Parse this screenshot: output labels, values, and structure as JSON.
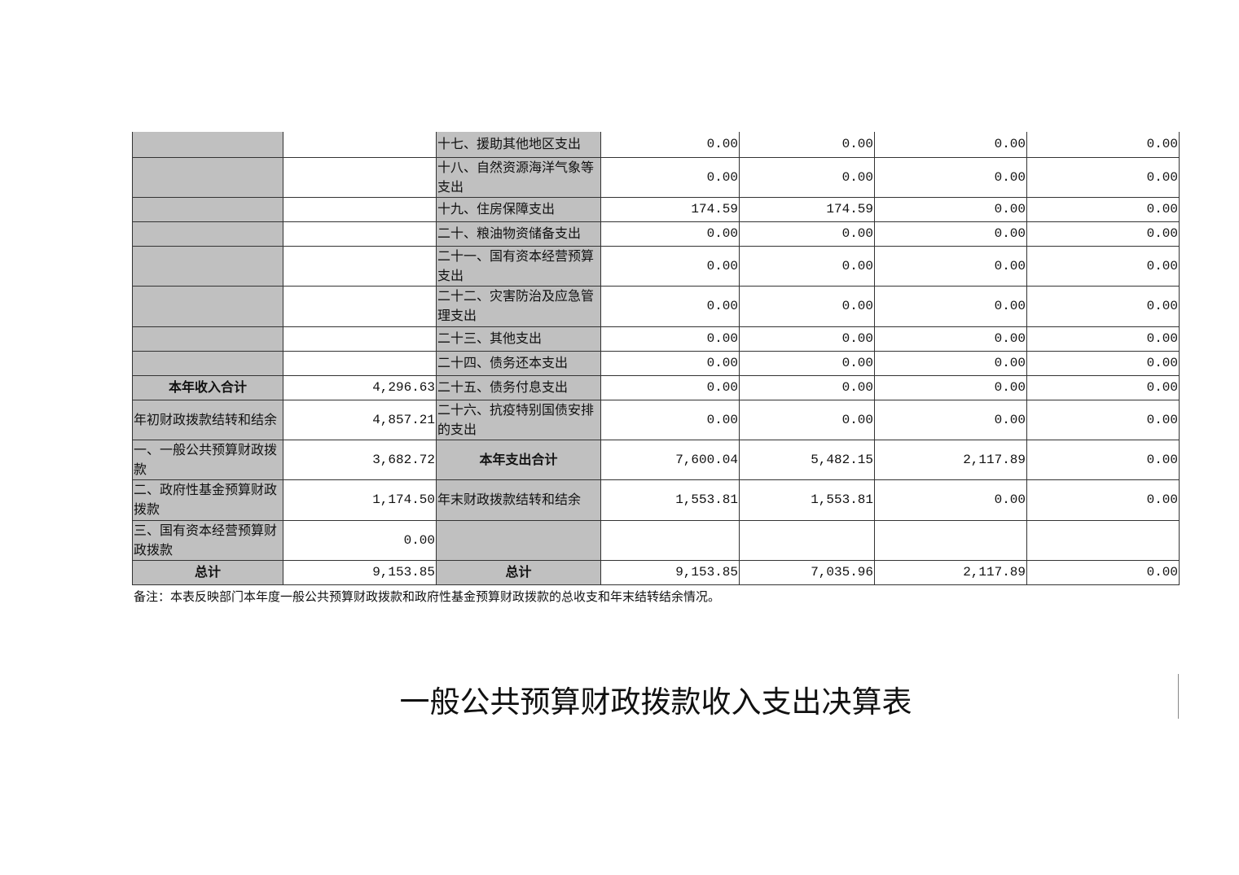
{
  "table": {
    "rows": [
      {
        "left_label": "",
        "left_value": "",
        "right_label": "十七、援助其他地区支出",
        "values": [
          "0.00",
          "0.00",
          "0.00",
          "0.00"
        ]
      },
      {
        "left_label": "",
        "left_value": "",
        "right_label": "十八、自然资源海洋气象等支出",
        "values": [
          "0.00",
          "0.00",
          "0.00",
          "0.00"
        ]
      },
      {
        "left_label": "",
        "left_value": "",
        "right_label": "十九、住房保障支出",
        "values": [
          "174.59",
          "174.59",
          "0.00",
          "0.00"
        ]
      },
      {
        "left_label": "",
        "left_value": "",
        "right_label": "二十、粮油物资储备支出",
        "values": [
          "0.00",
          "0.00",
          "0.00",
          "0.00"
        ]
      },
      {
        "left_label": "",
        "left_value": "",
        "right_label": "二十一、国有资本经营预算支出",
        "values": [
          "0.00",
          "0.00",
          "0.00",
          "0.00"
        ]
      },
      {
        "left_label": "",
        "left_value": "",
        "right_label": "二十二、灾害防治及应急管理支出",
        "values": [
          "0.00",
          "0.00",
          "0.00",
          "0.00"
        ]
      },
      {
        "left_label": "",
        "left_value": "",
        "right_label": "二十三、其他支出",
        "values": [
          "0.00",
          "0.00",
          "0.00",
          "0.00"
        ]
      },
      {
        "left_label": "",
        "left_value": "",
        "right_label": "二十四、债务还本支出",
        "values": [
          "0.00",
          "0.00",
          "0.00",
          "0.00"
        ]
      },
      {
        "left_label": "本年收入合计",
        "left_bold": true,
        "left_value": "4,296.63",
        "right_label": "二十五、债务付息支出",
        "values": [
          "0.00",
          "0.00",
          "0.00",
          "0.00"
        ]
      },
      {
        "left_label": "年初财政拨款结转和结余",
        "left_value": "4,857.21",
        "right_label": "二十六、抗疫特别国债安排的支出",
        "values": [
          "0.00",
          "0.00",
          "0.00",
          "0.00"
        ]
      },
      {
        "left_label": "一、一般公共预算财政拨款",
        "left_value": "3,682.72",
        "right_label": "本年支出合计",
        "right_bold": true,
        "values": [
          "7,600.04",
          "5,482.15",
          "2,117.89",
          "0.00"
        ]
      },
      {
        "left_label": "二、政府性基金预算财政拨款",
        "left_value": "1,174.50",
        "right_label": "年末财政拨款结转和结余",
        "values": [
          "1,553.81",
          "1,553.81",
          "0.00",
          "0.00"
        ]
      },
      {
        "left_label": "三、国有资本经营预算财政拨款",
        "left_value": "0.00",
        "right_label": "",
        "values": [
          "",
          "",
          "",
          ""
        ]
      },
      {
        "left_label": "总计",
        "left_bold": true,
        "left_value": "9,153.85",
        "right_label": "总计",
        "right_bold": true,
        "values": [
          "9,153.85",
          "7,035.96",
          "2,117.89",
          "0.00"
        ]
      }
    ]
  },
  "note": "备注：本表反映部门本年度一般公共预算财政拨款和政府性基金预算财政拨款的总收支和年末结转结余情况。",
  "next_title": "一般公共预算财政拨款收入支出决算表"
}
